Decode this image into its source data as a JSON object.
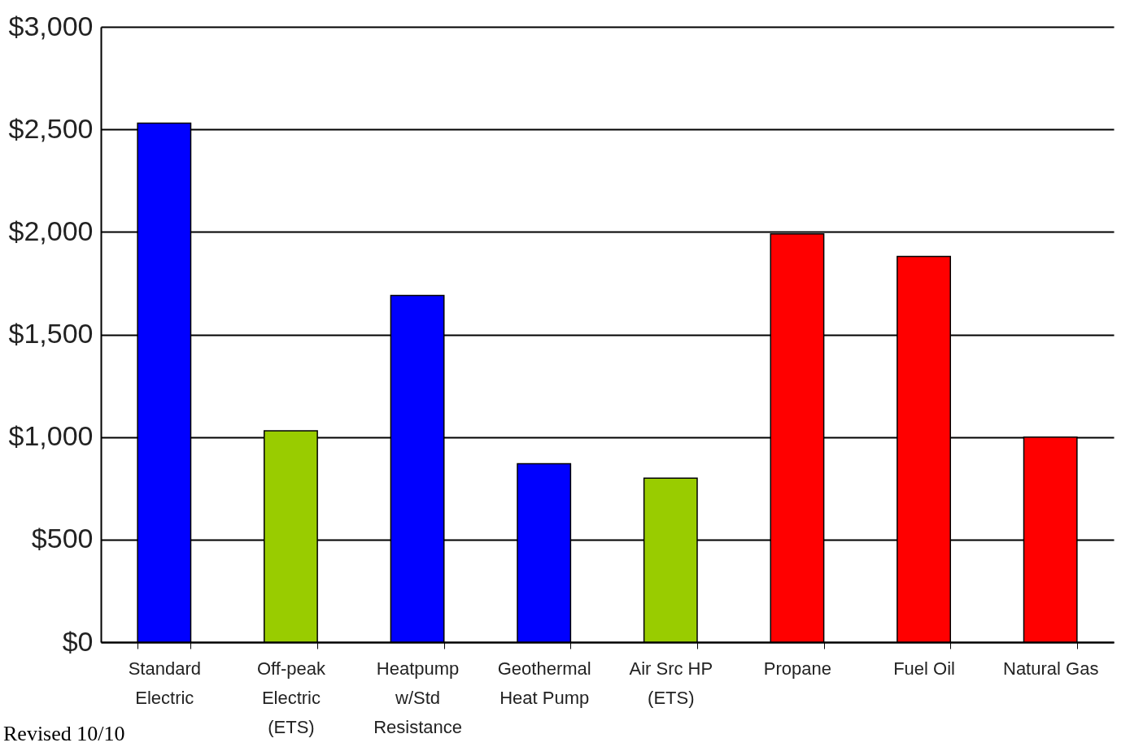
{
  "chart_data": {
    "type": "bar",
    "categories": [
      "Standard Electric",
      "Off-peak Electric (ETS)",
      "Heatpump w/Std Resistance",
      "Geothermal Heat Pump",
      "Air Src HP (ETS)",
      "Propane",
      "Fuel Oil",
      "Natural Gas"
    ],
    "values": [
      2530,
      1030,
      1690,
      870,
      800,
      1990,
      1880,
      1000
    ],
    "colors": [
      "#0000ff",
      "#99cc00",
      "#0000ff",
      "#0000ff",
      "#99cc00",
      "#ff0000",
      "#ff0000",
      "#ff0000"
    ],
    "ylim": [
      0,
      3000
    ],
    "yticks": [
      {
        "value": 0,
        "label": "$0"
      },
      {
        "value": 500,
        "label": "$500"
      },
      {
        "value": 1000,
        "label": "$1,000"
      },
      {
        "value": 1500,
        "label": "$1,500"
      },
      {
        "value": 2000,
        "label": "$2,000"
      },
      {
        "value": 2500,
        "label": "$2,500"
      },
      {
        "value": 3000,
        "label": "$3,000"
      }
    ],
    "grid": "y",
    "annotations": [
      "Revised 10/10"
    ]
  }
}
